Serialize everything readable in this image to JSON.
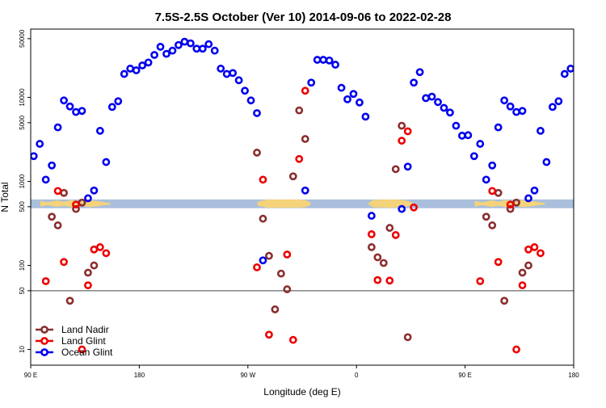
{
  "chart_data": {
    "type": "scatter",
    "title": "7.5S-2.5S October (Ver 10)   2014-09-06 to 2022-02-28",
    "xlabel": "Longitude (deg E)",
    "ylabel": "N Total",
    "x_scale": "linear",
    "y_scale": "log",
    "xlim": [
      90,
      540
    ],
    "ylim": [
      6.5,
      65000
    ],
    "x_ticks": [
      {
        "value": 90,
        "label": "90 E"
      },
      {
        "value": 180,
        "label": "180"
      },
      {
        "value": 270,
        "label": "90 W"
      },
      {
        "value": 360,
        "label": "0"
      },
      {
        "value": 450,
        "label": "90 E"
      },
      {
        "value": 540,
        "label": "180"
      }
    ],
    "y_ticks": [
      {
        "value": 10,
        "label": "10"
      },
      {
        "value": 50,
        "label": "50"
      },
      {
        "value": 100,
        "label": "100"
      },
      {
        "value": 500,
        "label": "500"
      },
      {
        "value": 1000,
        "label": "1000"
      },
      {
        "value": 5000,
        "label": "5000"
      },
      {
        "value": 10000,
        "label": "10000"
      },
      {
        "value": 50000,
        "label": "50000"
      }
    ],
    "reference_line": {
      "y": 50,
      "color": "#444444"
    },
    "map_strip": {
      "y_range": [
        480,
        610
      ],
      "ocean_color": "#a9bfdc",
      "land_color": "#f5d37a"
    },
    "legend_position": "bottom-left",
    "series": [
      {
        "name": "Land Nadir",
        "color": "#8b2e2e",
        "points": [
          [
            107.5,
            380
          ],
          [
            112.5,
            300
          ],
          [
            117.5,
            730
          ],
          [
            122.5,
            38
          ],
          [
            127.5,
            470
          ],
          [
            132.5,
            560
          ],
          [
            137.5,
            82
          ],
          [
            142.5,
            100
          ],
          [
            277.5,
            2200
          ],
          [
            282.5,
            360
          ],
          [
            287.5,
            130
          ],
          [
            292.5,
            30
          ],
          [
            297.5,
            80
          ],
          [
            302.5,
            52
          ],
          [
            307.5,
            1150
          ],
          [
            312.5,
            7000
          ],
          [
            317.5,
            3200
          ],
          [
            372.5,
            165
          ],
          [
            377.5,
            125
          ],
          [
            382.5,
            107
          ],
          [
            387.5,
            280
          ],
          [
            392.5,
            1400
          ],
          [
            397.5,
            4600
          ],
          [
            402.5,
            14
          ],
          [
            467.5,
            380
          ],
          [
            472.5,
            300
          ],
          [
            477.5,
            730
          ],
          [
            482.5,
            38
          ],
          [
            487.5,
            470
          ],
          [
            492.5,
            560
          ],
          [
            497.5,
            82
          ],
          [
            502.5,
            100
          ]
        ]
      },
      {
        "name": "Land Glint",
        "color": "#ee0000",
        "points": [
          [
            102.5,
            65
          ],
          [
            112.5,
            770
          ],
          [
            117.5,
            110
          ],
          [
            127.5,
            530
          ],
          [
            132.5,
            10
          ],
          [
            137.5,
            58
          ],
          [
            142.5,
            155
          ],
          [
            147.5,
            165
          ],
          [
            152.5,
            140
          ],
          [
            277.5,
            95
          ],
          [
            282.5,
            1050
          ],
          [
            287.5,
            15
          ],
          [
            302.5,
            135
          ],
          [
            307.5,
            13
          ],
          [
            312.5,
            1850
          ],
          [
            317.5,
            12000
          ],
          [
            372.5,
            235
          ],
          [
            377.5,
            67
          ],
          [
            387.5,
            66
          ],
          [
            392.5,
            230
          ],
          [
            397.5,
            3050
          ],
          [
            402.5,
            3950
          ],
          [
            407.5,
            490
          ],
          [
            462.5,
            65
          ],
          [
            472.5,
            770
          ],
          [
            477.5,
            110
          ],
          [
            487.5,
            530
          ],
          [
            492.5,
            10
          ],
          [
            497.5,
            58
          ],
          [
            502.5,
            155
          ],
          [
            507.5,
            165
          ],
          [
            512.5,
            140
          ]
        ]
      },
      {
        "name": "Ocean Glint",
        "color": "#0000ee",
        "points": [
          [
            92.5,
            2000
          ],
          [
            97.5,
            2800
          ],
          [
            102.5,
            1050
          ],
          [
            107.5,
            1550
          ],
          [
            112.5,
            4400
          ],
          [
            117.5,
            9200
          ],
          [
            122.5,
            7800
          ],
          [
            127.5,
            6700
          ],
          [
            132.5,
            6900
          ],
          [
            137.5,
            630
          ],
          [
            142.5,
            780
          ],
          [
            147.5,
            4000
          ],
          [
            152.5,
            1700
          ],
          [
            157.5,
            7700
          ],
          [
            162.5,
            9000
          ],
          [
            167.5,
            19000
          ],
          [
            172.5,
            22000
          ],
          [
            177.5,
            21000
          ],
          [
            182.5,
            24000
          ],
          [
            187.5,
            26000
          ],
          [
            192.5,
            32000
          ],
          [
            197.5,
            40000
          ],
          [
            202.5,
            33000
          ],
          [
            207.5,
            36000
          ],
          [
            212.5,
            42000
          ],
          [
            217.5,
            46000
          ],
          [
            222.5,
            44000
          ],
          [
            227.5,
            38000
          ],
          [
            232.5,
            38000
          ],
          [
            237.5,
            43000
          ],
          [
            242.5,
            36000
          ],
          [
            247.5,
            22000
          ],
          [
            252.5,
            19000
          ],
          [
            257.5,
            19500
          ],
          [
            262.5,
            16000
          ],
          [
            267.5,
            12000
          ],
          [
            272.5,
            9200
          ],
          [
            277.5,
            6500
          ],
          [
            282.5,
            115
          ],
          [
            317.5,
            780
          ],
          [
            322.5,
            15000
          ],
          [
            327.5,
            28000
          ],
          [
            332.5,
            28000
          ],
          [
            337.5,
            27500
          ],
          [
            342.5,
            24500
          ],
          [
            347.5,
            13000
          ],
          [
            352.5,
            9500
          ],
          [
            357.5,
            11000
          ],
          [
            362.5,
            8700
          ],
          [
            367.5,
            5900
          ],
          [
            372.5,
            390
          ],
          [
            397.5,
            470
          ],
          [
            402.5,
            1500
          ],
          [
            407.5,
            15000
          ],
          [
            412.5,
            20000
          ],
          [
            417.5,
            9800
          ],
          [
            422.5,
            10200
          ],
          [
            427.5,
            8800
          ],
          [
            432.5,
            7500
          ],
          [
            437.5,
            6600
          ],
          [
            442.5,
            4600
          ],
          [
            447.5,
            3500
          ],
          [
            452.5,
            3550
          ],
          [
            457.5,
            2000
          ],
          [
            462.5,
            2800
          ],
          [
            467.5,
            1050
          ],
          [
            472.5,
            1550
          ],
          [
            477.5,
            4400
          ],
          [
            482.5,
            9200
          ],
          [
            487.5,
            7800
          ],
          [
            492.5,
            6700
          ],
          [
            497.5,
            6900
          ],
          [
            502.5,
            630
          ],
          [
            507.5,
            780
          ],
          [
            512.5,
            4000
          ],
          [
            517.5,
            1700
          ],
          [
            522.5,
            7700
          ],
          [
            527.5,
            9000
          ],
          [
            532.5,
            19000
          ],
          [
            537.5,
            22000
          ],
          [
            542.5,
            21000
          ]
        ]
      }
    ]
  }
}
